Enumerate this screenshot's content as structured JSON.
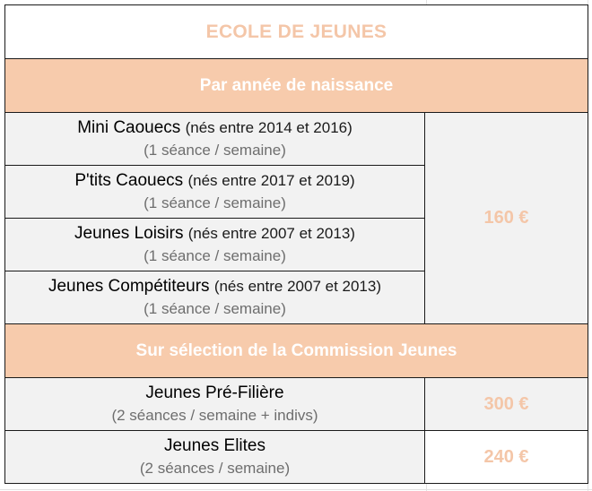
{
  "title": "ECOLE DE JEUNES",
  "sections": [
    {
      "header": "Par année de naissance",
      "shared_price": "160 €",
      "rows": [
        {
          "name": "Mini Caouecs",
          "ages": "(nés entre 2014 et 2016)",
          "frequency": "(1 séance / semaine)"
        },
        {
          "name": "P'tits Caouecs",
          "ages": "(nés entre 2017 et 2019)",
          "frequency": "(1 séance / semaine)"
        },
        {
          "name": "Jeunes Loisirs",
          "ages": "(nés entre 2007 et 2013)",
          "frequency": "(1 séance / semaine)"
        },
        {
          "name": "Jeunes Compétiteurs",
          "ages": "(nés entre 2007 et 2013)",
          "frequency": "(1 séance / semaine)"
        }
      ]
    },
    {
      "header": "Sur sélection de la Commission Jeunes",
      "rows": [
        {
          "name": "Jeunes Pré-Filière",
          "frequency": "(2 séances / semaine + indivs)",
          "price": "300 €"
        },
        {
          "name": "Jeunes Elites",
          "frequency": "(2 séances / semaine)",
          "price": "240 €"
        }
      ]
    }
  ],
  "colors": {
    "accent": "#f7cbac",
    "price_text": "#f4c6a8",
    "row_background": "#f2f2f2",
    "secondary_text": "#6e6e6e"
  }
}
